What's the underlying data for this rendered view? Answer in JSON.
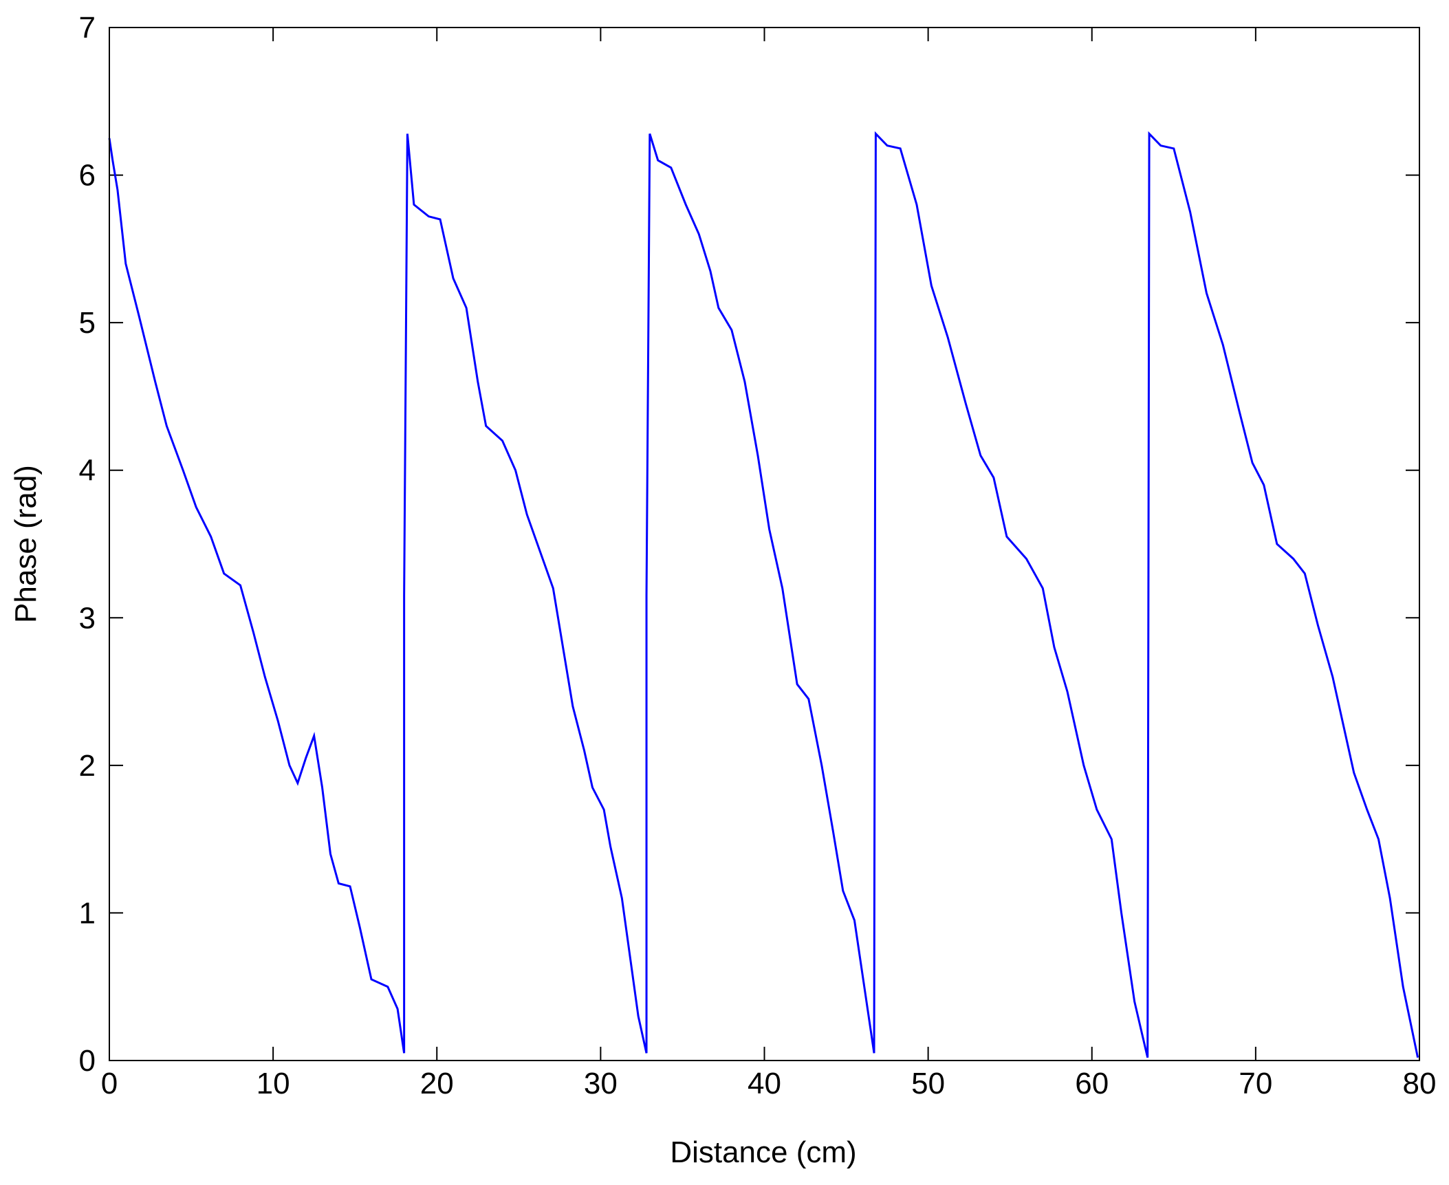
{
  "chart_data": {
    "type": "line",
    "x_label": "Distance (cm)",
    "y_label": "Phase (rad)",
    "xlim": [
      0,
      80
    ],
    "ylim": [
      0,
      7
    ],
    "xticks": [
      0,
      10,
      20,
      30,
      40,
      50,
      60,
      70,
      80
    ],
    "yticks": [
      0,
      1,
      2,
      3,
      4,
      5,
      6,
      7
    ],
    "grid": false,
    "series": [
      {
        "color": "#0000ff",
        "x": [
          0,
          0.2,
          0.5,
          1,
          1.8,
          2.8,
          3.5,
          4.5,
          5.3,
          6.2,
          7,
          8,
          8.8,
          9.5,
          10.3,
          11,
          11.5,
          12,
          12.5,
          13,
          13.5,
          14,
          14.7,
          15.3,
          16,
          17,
          17.6,
          18.0,
          18.0,
          18.2,
          18.6,
          19.5,
          20.2,
          21,
          21.8,
          22.5,
          23,
          24,
          24.8,
          25.5,
          26.3,
          27.1,
          27.7,
          28.3,
          29,
          29.5,
          30.2,
          30.6,
          31.3,
          31.8,
          32.3,
          32.8,
          32.8,
          33,
          33.5,
          34.3,
          35.2,
          36,
          36.7,
          37.2,
          38,
          38.8,
          39.6,
          40.3,
          41.1,
          42,
          42.7,
          43.5,
          44.2,
          44.8,
          45.5,
          46.1,
          46.7,
          46.8,
          47.5,
          48.3,
          49.3,
          50.2,
          51.2,
          52.3,
          53.2,
          54,
          54.8,
          56,
          57,
          57.7,
          58.5,
          59.5,
          60.3,
          61.2,
          61.8,
          62.6,
          63.4,
          63.5,
          64.2,
          65,
          66,
          67,
          68,
          69,
          69.8,
          70.5,
          71.3,
          72.3,
          73,
          73.8,
          74.7,
          75.3,
          76,
          76.8,
          77.5,
          78.2,
          79,
          79.9
        ],
        "values": [
          6.25,
          6.1,
          5.9,
          5.4,
          5.05,
          4.6,
          4.3,
          4.0,
          3.75,
          3.55,
          3.3,
          3.22,
          2.9,
          2.6,
          2.3,
          2.0,
          1.88,
          2.05,
          2.2,
          1.85,
          1.4,
          1.2,
          1.18,
          0.9,
          0.55,
          0.5,
          0.35,
          0.05,
          3.15,
          6.28,
          5.8,
          5.72,
          5.7,
          5.3,
          5.1,
          4.6,
          4.3,
          4.2,
          4.0,
          3.7,
          3.45,
          3.2,
          2.8,
          2.4,
          2.1,
          1.85,
          1.7,
          1.45,
          1.1,
          0.7,
          0.3,
          0.05,
          3.15,
          6.28,
          6.1,
          6.05,
          5.8,
          5.6,
          5.35,
          5.1,
          4.95,
          4.6,
          4.1,
          3.6,
          3.2,
          2.55,
          2.45,
          2.0,
          1.55,
          1.15,
          0.95,
          0.5,
          0.05,
          6.28,
          6.2,
          6.18,
          5.8,
          5.25,
          4.9,
          4.45,
          4.1,
          3.95,
          3.55,
          3.4,
          3.2,
          2.8,
          2.5,
          2.0,
          1.7,
          1.5,
          1.0,
          0.4,
          0.02,
          6.28,
          6.2,
          6.18,
          5.75,
          5.2,
          4.85,
          4.4,
          4.05,
          3.9,
          3.5,
          3.4,
          3.3,
          2.95,
          2.6,
          2.3,
          1.95,
          1.7,
          1.5,
          1.1,
          0.5,
          0.02
        ]
      }
    ]
  }
}
